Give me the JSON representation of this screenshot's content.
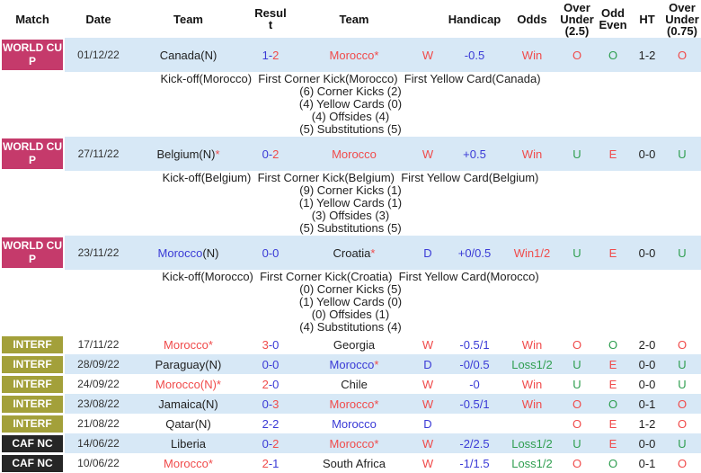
{
  "colors": {
    "red": "#f04b4b",
    "blue": "#3a3ad6",
    "green": "#2f9e50",
    "text": "#222222",
    "row_blue": "#d7e8f6",
    "badge_worldcup": "#c53a6b",
    "badge_interf": "#a3a03a",
    "badge_cafnc": "#262626"
  },
  "table": {
    "columns": [
      {
        "key": "match",
        "label": "Match"
      },
      {
        "key": "date",
        "label": "Date"
      },
      {
        "key": "team1",
        "label": "Team"
      },
      {
        "key": "result",
        "label": "Result"
      },
      {
        "key": "team2",
        "label": "Team"
      },
      {
        "key": "wd",
        "label": ""
      },
      {
        "key": "handicap",
        "label": "Handicap"
      },
      {
        "key": "odds",
        "label": "Odds"
      },
      {
        "key": "ou25",
        "label": "Over Under (2.5)"
      },
      {
        "key": "oddeven",
        "label": "Odd Even"
      },
      {
        "key": "ht",
        "label": "HT"
      },
      {
        "key": "ou075",
        "label": "Over Under (0.75)"
      }
    ],
    "rows": [
      {
        "competition": "WORLD CUP",
        "date": "01/12/22",
        "bg": "blue",
        "team1": [
          [
            "Canada(N)",
            "black"
          ]
        ],
        "result": [
          [
            "1-",
            "blue"
          ],
          [
            "2",
            "red"
          ]
        ],
        "team2": [
          [
            "Morocco",
            "red"
          ],
          [
            "*",
            "red"
          ]
        ],
        "wd": [
          "W",
          "red"
        ],
        "handicap": "-0.5",
        "odds": [
          "Win",
          "red"
        ],
        "ou25": [
          "O",
          "red"
        ],
        "oddeven": [
          "O",
          "green"
        ],
        "ht": "1-2",
        "ou075": [
          "O",
          "red"
        ],
        "details": {
          "header": "Kick-off(Morocco)  First Corner Kick(Morocco)  First Yellow Card(Canada)",
          "stats": [
            "(6) Corner Kicks (2)",
            "(4) Yellow Cards (0)",
            "(4) Offsides (4)",
            "(5) Substitutions (5)"
          ]
        }
      },
      {
        "competition": "WORLD CUP",
        "date": "27/11/22",
        "bg": "blue",
        "team1": [
          [
            "Belgium(N)",
            "black"
          ],
          [
            "*",
            "red"
          ]
        ],
        "result": [
          [
            "0-",
            "blue"
          ],
          [
            "2",
            "red"
          ]
        ],
        "team2": [
          [
            "Morocco",
            "red"
          ]
        ],
        "wd": [
          "W",
          "red"
        ],
        "handicap": "+0.5",
        "odds": [
          "Win",
          "red"
        ],
        "ou25": [
          "U",
          "green"
        ],
        "oddeven": [
          "E",
          "red"
        ],
        "ht": "0-0",
        "ou075": [
          "U",
          "green"
        ],
        "details": {
          "header": "Kick-off(Belgium)  First Corner Kick(Belgium)  First Yellow Card(Belgium)",
          "stats": [
            "(9) Corner Kicks (1)",
            "(1) Yellow Cards (1)",
            "(3) Offsides (3)",
            "(5) Substitutions (5)"
          ]
        }
      },
      {
        "competition": "WORLD CUP",
        "date": "23/11/22",
        "bg": "blue",
        "team1": [
          [
            "Morocco",
            "blue"
          ],
          [
            "(N)",
            "black"
          ]
        ],
        "result": [
          [
            "0-0",
            "blue"
          ]
        ],
        "team2": [
          [
            "Croatia",
            "black"
          ],
          [
            "*",
            "red"
          ]
        ],
        "wd": [
          "D",
          "blue"
        ],
        "handicap": "+0/0.5",
        "odds": [
          "Win1/2",
          "red"
        ],
        "ou25": [
          "U",
          "green"
        ],
        "oddeven": [
          "E",
          "red"
        ],
        "ht": "0-0",
        "ou075": [
          "U",
          "green"
        ],
        "details": {
          "header": "Kick-off(Morocco)  First Corner Kick(Croatia)  First Yellow Card(Morocco)",
          "stats": [
            "(0) Corner Kicks (5)",
            "(1) Yellow Cards (0)",
            "(0) Offsides (1)",
            "(4) Substitutions (4)"
          ]
        }
      },
      {
        "competition": "INTERF",
        "date": "17/11/22",
        "bg": "white",
        "team1": [
          [
            "Morocco",
            "red"
          ],
          [
            "*",
            "red"
          ]
        ],
        "result": [
          [
            "3",
            "red"
          ],
          [
            "-0",
            "blue"
          ]
        ],
        "team2": [
          [
            "Georgia",
            "black"
          ]
        ],
        "wd": [
          "W",
          "red"
        ],
        "handicap": "-0.5/1",
        "odds": [
          "Win",
          "red"
        ],
        "ou25": [
          "O",
          "red"
        ],
        "oddeven": [
          "O",
          "green"
        ],
        "ht": "2-0",
        "ou075": [
          "O",
          "red"
        ]
      },
      {
        "competition": "INTERF",
        "date": "28/09/22",
        "bg": "blue",
        "team1": [
          [
            "Paraguay(N)",
            "black"
          ]
        ],
        "result": [
          [
            "0-0",
            "blue"
          ]
        ],
        "team2": [
          [
            "Morocco",
            "blue"
          ],
          [
            "*",
            "red"
          ]
        ],
        "wd": [
          "D",
          "blue"
        ],
        "handicap": "-0/0.5",
        "odds": [
          "Loss1/2",
          "green"
        ],
        "ou25": [
          "U",
          "green"
        ],
        "oddeven": [
          "E",
          "red"
        ],
        "ht": "0-0",
        "ou075": [
          "U",
          "green"
        ]
      },
      {
        "competition": "INTERF",
        "date": "24/09/22",
        "bg": "white",
        "team1": [
          [
            "Morocco(N)",
            "red"
          ],
          [
            "*",
            "red"
          ]
        ],
        "result": [
          [
            "2",
            "red"
          ],
          [
            "-0",
            "blue"
          ]
        ],
        "team2": [
          [
            "Chile",
            "black"
          ]
        ],
        "wd": [
          "W",
          "red"
        ],
        "handicap": "-0",
        "odds": [
          "Win",
          "red"
        ],
        "ou25": [
          "U",
          "green"
        ],
        "oddeven": [
          "E",
          "red"
        ],
        "ht": "0-0",
        "ou075": [
          "U",
          "green"
        ]
      },
      {
        "competition": "INTERF",
        "date": "23/08/22",
        "bg": "blue",
        "team1": [
          [
            "Jamaica(N)",
            "black"
          ]
        ],
        "result": [
          [
            "0-",
            "blue"
          ],
          [
            "3",
            "red"
          ]
        ],
        "team2": [
          [
            "Morocco",
            "red"
          ],
          [
            "*",
            "red"
          ]
        ],
        "wd": [
          "W",
          "red"
        ],
        "handicap": "-0.5/1",
        "odds": [
          "Win",
          "red"
        ],
        "ou25": [
          "O",
          "red"
        ],
        "oddeven": [
          "O",
          "green"
        ],
        "ht": "0-1",
        "ou075": [
          "O",
          "red"
        ]
      },
      {
        "competition": "INTERF",
        "date": "21/08/22",
        "bg": "white",
        "team1": [
          [
            "Qatar(N)",
            "black"
          ]
        ],
        "result": [
          [
            "2-2",
            "blue"
          ]
        ],
        "team2": [
          [
            "Morocco",
            "blue"
          ]
        ],
        "wd": [
          "D",
          "blue"
        ],
        "handicap": "",
        "odds": null,
        "ou25": [
          "O",
          "red"
        ],
        "oddeven": [
          "E",
          "red"
        ],
        "ht": "1-2",
        "ou075": [
          "O",
          "red"
        ]
      },
      {
        "competition": "CAF NC",
        "date": "14/06/22",
        "bg": "blue",
        "team1": [
          [
            "Liberia",
            "black"
          ]
        ],
        "result": [
          [
            "0-",
            "blue"
          ],
          [
            "2",
            "red"
          ]
        ],
        "team2": [
          [
            "Morocco",
            "red"
          ],
          [
            "*",
            "red"
          ]
        ],
        "wd": [
          "W",
          "red"
        ],
        "handicap": "-2/2.5",
        "odds": [
          "Loss1/2",
          "green"
        ],
        "ou25": [
          "U",
          "green"
        ],
        "oddeven": [
          "E",
          "red"
        ],
        "ht": "0-0",
        "ou075": [
          "U",
          "green"
        ]
      },
      {
        "competition": "CAF NC",
        "date": "10/06/22",
        "bg": "white",
        "team1": [
          [
            "Morocco",
            "red"
          ],
          [
            "*",
            "red"
          ]
        ],
        "result": [
          [
            "2",
            "red"
          ],
          [
            "-1",
            "blue"
          ]
        ],
        "team2": [
          [
            "South Africa",
            "black"
          ]
        ],
        "wd": [
          "W",
          "red"
        ],
        "handicap": "-1/1.5",
        "odds": [
          "Loss1/2",
          "green"
        ],
        "ou25": [
          "O",
          "red"
        ],
        "oddeven": [
          "O",
          "green"
        ],
        "ht": "0-1",
        "ou075": [
          "O",
          "red"
        ]
      }
    ]
  }
}
